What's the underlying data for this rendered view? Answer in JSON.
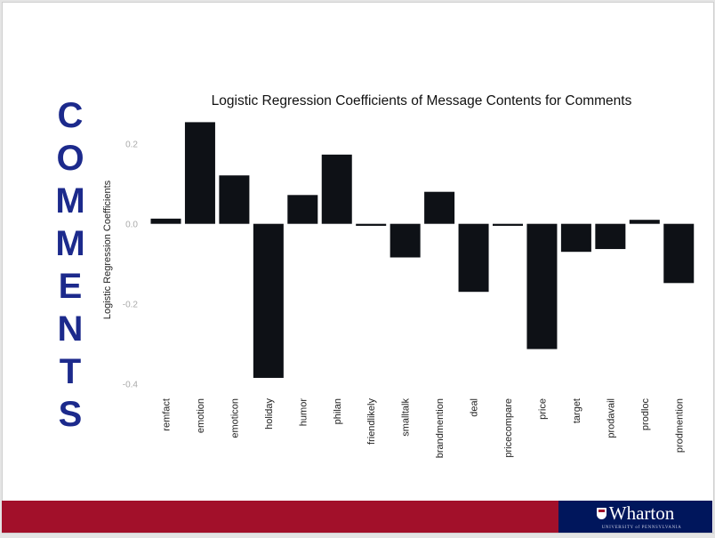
{
  "slide": {
    "side_title_letters": [
      "C",
      "O",
      "M",
      "M",
      "E",
      "N",
      "T",
      "S"
    ],
    "footer": {
      "logo_name": "Wharton",
      "logo_sub": "UNIVERSITY of PENNSYLVANIA"
    },
    "colors": {
      "side_title": "#1c2a8c",
      "band_red": "#a2102a",
      "band_blue": "#00165c",
      "bar": "#0e1116"
    }
  },
  "chart_data": {
    "type": "bar",
    "title": "Logistic Regression Coefficients of Message Contents for Comments",
    "xlabel": "",
    "ylabel": "Logistic Regression Coefficients",
    "ylim": [
      -0.4,
      0.26
    ],
    "yticks": [
      0.2,
      0.0,
      -0.2,
      -0.4
    ],
    "ytick_labels": [
      "0.2",
      "0.0",
      "-0.2",
      "-0.4"
    ],
    "grid": false,
    "categories": [
      "remfact",
      "emotion",
      "emoticon",
      "holiday",
      "humor",
      "philan",
      "friendlikely",
      "smalltalk",
      "brandmention",
      "deal",
      "pricecompare",
      "price",
      "target",
      "prodavail",
      "prodloc",
      "prodmention"
    ],
    "values": [
      0.013,
      0.254,
      0.121,
      -0.385,
      0.072,
      0.173,
      -0.005,
      -0.084,
      0.08,
      -0.17,
      -0.005,
      -0.313,
      -0.07,
      -0.063,
      0.01,
      -0.148
    ]
  }
}
